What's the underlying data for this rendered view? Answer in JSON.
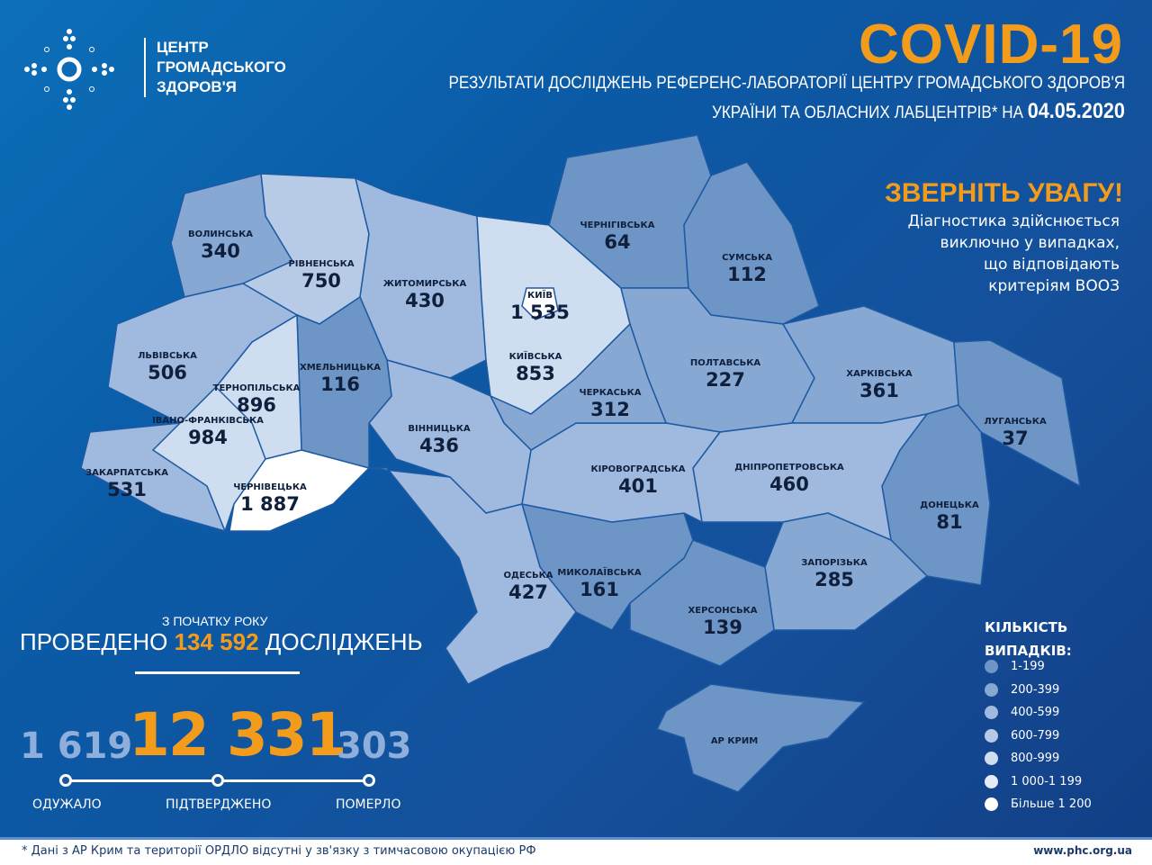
{
  "logo": {
    "lines": [
      "ЦЕНТР",
      "ГРОМАДСЬКОГО",
      "ЗДОРОВ'Я"
    ],
    "icon": "phc-dots-logo"
  },
  "header": {
    "title": "COVID-19",
    "subtitle1": "РЕЗУЛЬТАТИ ДОСЛІДЖЕНЬ РЕФЕРЕНС-ЛАБОРАТОРІЇ ЦЕНТРУ ГРОМАДСЬКОГО ЗДОРОВ'Я",
    "subtitle2": "УКРАЇНИ ТА ОБЛАСНИХ ЛАБЦЕНТРІВ* НА",
    "date": "04.05.2020"
  },
  "attention": {
    "heading": "ЗВЕРНІТЬ УВАГУ!",
    "lines": [
      "Діагностика здійснюється",
      "виключно у випадках,",
      "що відповідають",
      "критеріям ВООЗ"
    ]
  },
  "regions": [
    {
      "name": "ВОЛИНСЬКА",
      "value": "340"
    },
    {
      "name": "РІВНЕНСЬКА",
      "value": "750"
    },
    {
      "name": "ЖИТОМИРСЬКА",
      "value": "430"
    },
    {
      "name": "КИЇВ",
      "value": "1 535"
    },
    {
      "name": "КИЇВСЬКА",
      "value": "853"
    },
    {
      "name": "ЧЕРНІГІВСЬКА",
      "value": "64"
    },
    {
      "name": "СУМСЬКА",
      "value": "112"
    },
    {
      "name": "ЛЬВІВСЬКА",
      "value": "506"
    },
    {
      "name": "ТЕРНОПІЛЬСЬКА",
      "value": "896"
    },
    {
      "name": "ХМЕЛЬНИЦЬКА",
      "value": "116"
    },
    {
      "name": "ВІННИЦЬКА",
      "value": "436"
    },
    {
      "name": "ЧЕРКАСЬКА",
      "value": "312"
    },
    {
      "name": "ПОЛТАВСЬКА",
      "value": "227"
    },
    {
      "name": "ХАРКІВСЬКА",
      "value": "361"
    },
    {
      "name": "ЛУГАНСЬКА",
      "value": "37"
    },
    {
      "name": "ІВАНО-ФРАНКІВСЬКА",
      "value": "984"
    },
    {
      "name": "ЗАКАРПАТСЬКА",
      "value": "531"
    },
    {
      "name": "ЧЕРНІВЕЦЬКА",
      "value": "1 887"
    },
    {
      "name": "КІРОВОГРАДСЬКА",
      "value": "401"
    },
    {
      "name": "ДНІПРОПЕТРОВСЬКА",
      "value": "460"
    },
    {
      "name": "ДОНЕЦЬКА",
      "value": "81"
    },
    {
      "name": "ОДЕСЬКА",
      "value": "427"
    },
    {
      "name": "МИКОЛАЇВСЬКА",
      "value": "161"
    },
    {
      "name": "ЗАПОРІЗЬКА",
      "value": "285"
    },
    {
      "name": "ХЕРСОНСЬКА",
      "value": "139"
    },
    {
      "name": "АР КРИМ",
      "value": ""
    }
  ],
  "tests": {
    "heading": "З ПОЧАТКУ РОКУ",
    "prefix": "ПРОВЕДЕНО",
    "count": "134 592",
    "suffix": "ДОСЛІДЖЕНЬ"
  },
  "totals": {
    "recovered": "1 619",
    "confirmed": "12 331",
    "deaths": "303",
    "recovered_label": "ОДУЖАЛО",
    "confirmed_label": "ПІДТВЕРДЖЕНО",
    "deaths_label": "ПОМЕРЛО"
  },
  "legend": {
    "title1": "КІЛЬКІСТЬ",
    "title2": "ВИПАДКІВ:",
    "items": [
      {
        "label": "1-199",
        "color": "#6d95c6"
      },
      {
        "label": "200-399",
        "color": "#86a8d2"
      },
      {
        "label": "400-599",
        "color": "#9fbade"
      },
      {
        "label": "600-799",
        "color": "#b7cbe7"
      },
      {
        "label": "800-999",
        "color": "#cfddf0"
      },
      {
        "label": "1 000-1 199",
        "color": "#e5edf8"
      },
      {
        "label": "Більше 1 200",
        "color": "#ffffff"
      }
    ]
  },
  "footer": {
    "note": "* Дані з АР Крим та території ОРДЛО відсутні у зв'язку з тимчасовою окупацією РФ",
    "url": "www.phc.org.ua"
  }
}
